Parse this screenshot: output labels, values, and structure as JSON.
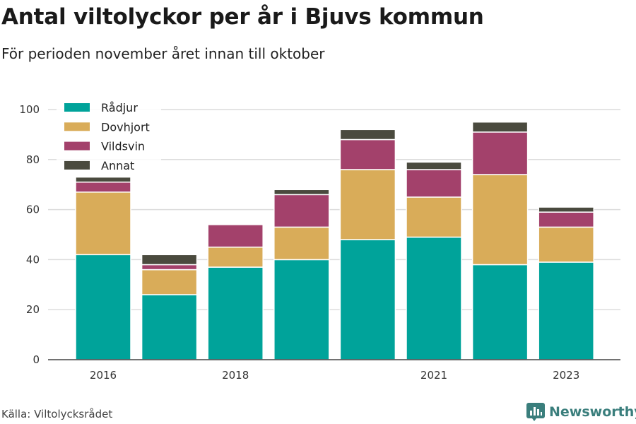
{
  "chart_data": {
    "type": "bar",
    "stacked": true,
    "title": "Antal viltolyckor per år i Bjuvs kommun",
    "subtitle": "För perioden november året innan till oktober",
    "x": [
      2016,
      2017,
      2018,
      2019,
      2020,
      2021,
      2022,
      2023
    ],
    "x_tick_labels": [
      "2016",
      "2018",
      "2021",
      "2023"
    ],
    "x_tick_values": [
      2016,
      2018,
      2021,
      2023
    ],
    "ylim": [
      0,
      100
    ],
    "y_ticks": [
      "0",
      "20",
      "40",
      "60",
      "80",
      "100"
    ],
    "y_tick_values": [
      0,
      20,
      40,
      60,
      80,
      100
    ],
    "grid": true,
    "legend_position": "top-left",
    "series": [
      {
        "name": "Rådjur",
        "color": "#00a39a",
        "values": [
          42,
          26,
          37,
          40,
          48,
          49,
          38,
          39
        ]
      },
      {
        "name": "Dovhjort",
        "color": "#d9ac59",
        "values": [
          25,
          10,
          8,
          13,
          28,
          16,
          36,
          14
        ]
      },
      {
        "name": "Vildsvin",
        "color": "#a3416b",
        "values": [
          4,
          2,
          9,
          13,
          12,
          11,
          17,
          6
        ]
      },
      {
        "name": "Annat",
        "color": "#4a4a3e",
        "values": [
          2,
          4,
          0,
          2,
          4,
          3,
          4,
          2
        ]
      }
    ]
  },
  "source": "Källa: Viltolycksrådet",
  "brand": {
    "name": "Newsworthy",
    "icon": "bar-chart-logo-icon",
    "color": "#3a7e7c"
  }
}
